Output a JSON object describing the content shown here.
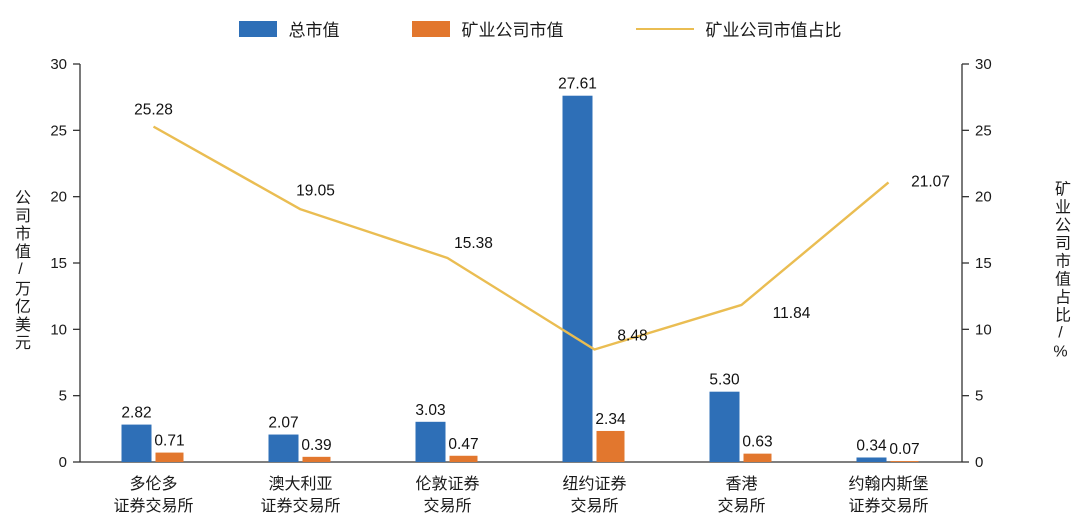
{
  "legend": [
    {
      "label": "总市值",
      "type": "bar",
      "color": "#2E6FB7"
    },
    {
      "label": "矿业公司市值",
      "type": "bar",
      "color": "#E2772E"
    },
    {
      "label": "矿业公司市值占比",
      "type": "line",
      "color": "#EABD52"
    }
  ],
  "chart_data": {
    "type": "bar+line",
    "categories": [
      [
        "多伦多",
        "证券交易所"
      ],
      [
        "澳大利亚",
        "证券交易所"
      ],
      [
        "伦敦证券",
        "交易所"
      ],
      [
        "纽约证券",
        "交易所"
      ],
      [
        "香港",
        "交易所"
      ],
      [
        "约翰内斯堡",
        "证券交易所"
      ]
    ],
    "series": [
      {
        "name": "总市值",
        "type": "bar",
        "color": "#2E6FB7",
        "axis": "left",
        "values": [
          2.82,
          2.07,
          3.03,
          27.61,
          5.3,
          0.34
        ]
      },
      {
        "name": "矿业公司市值",
        "type": "bar",
        "color": "#E2772E",
        "axis": "left",
        "values": [
          0.71,
          0.39,
          0.47,
          2.34,
          0.63,
          0.07
        ]
      },
      {
        "name": "矿业公司市值占比",
        "type": "line",
        "color": "#EABD52",
        "axis": "right",
        "values": [
          25.28,
          19.05,
          15.38,
          8.48,
          11.84,
          21.07
        ]
      }
    ],
    "ylabel_left": "公司市值/万亿美元",
    "ylabel_right": "矿业公司市值占比/%",
    "ylim": [
      0,
      30
    ],
    "yticks": [
      0,
      5,
      10,
      15,
      20,
      25,
      30
    ],
    "grid": false,
    "legend_position": "top"
  }
}
